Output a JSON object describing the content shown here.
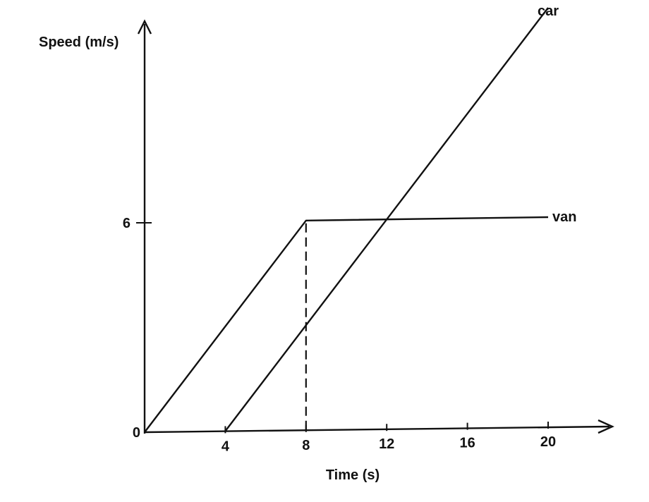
{
  "chart_data": {
    "type": "line",
    "title": "",
    "xlabel": "Time (s)",
    "ylabel": "Speed (m/s)",
    "xlim": [
      0,
      22
    ],
    "ylim": [
      0,
      10.5
    ],
    "x_ticks": [
      0,
      4,
      8,
      12,
      16,
      20
    ],
    "x_tick_labels": [
      "0",
      "4",
      "8",
      "12",
      "16",
      "20"
    ],
    "y_ticks": [
      0,
      6
    ],
    "y_tick_labels": [
      "0",
      "6"
    ],
    "grid": false,
    "color": "#111111",
    "series": [
      {
        "name": "van",
        "x": [
          0,
          8,
          20
        ],
        "y": [
          0,
          6,
          6
        ]
      },
      {
        "name": "car",
        "x": [
          4,
          12,
          20
        ],
        "y": [
          0,
          6,
          12
        ]
      }
    ],
    "reference_lines": [
      {
        "x": [
          8,
          8
        ],
        "y": [
          0,
          6
        ],
        "style": "dashed"
      }
    ]
  }
}
